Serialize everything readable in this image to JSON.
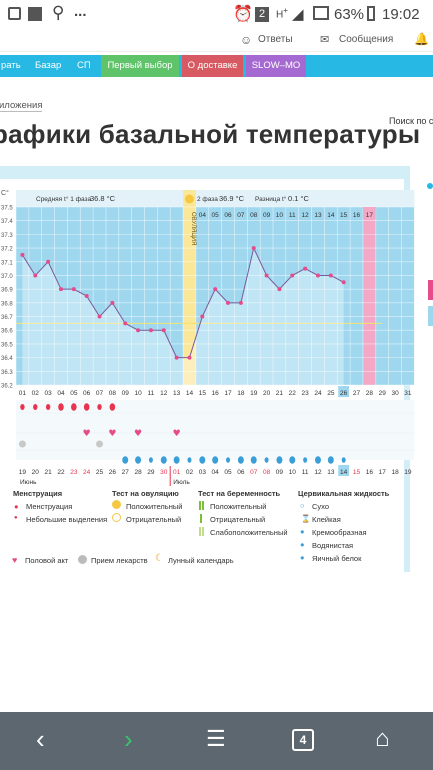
{
  "status": {
    "battery": "63%",
    "time": "19:02",
    "notif_count": "2",
    "dots": "..."
  },
  "topbar": {
    "answers": "Ответы",
    "messages": "Сообщения"
  },
  "nav": {
    "items": [
      {
        "label": "рать",
        "color": "#27b8e3"
      },
      {
        "label": "Базар",
        "color": "#27b8e3"
      },
      {
        "label": "СП",
        "color": "#27b8e3"
      },
      {
        "label": "Первый выбор",
        "color": "#5fc36a"
      },
      {
        "label": "О доставке",
        "color": "#d75a62"
      },
      {
        "label": "SLOW–MO",
        "color": "#a56ad1"
      }
    ],
    "search_placeholder": "Поиск по с"
  },
  "breadcrumb": "иложения",
  "page_title": "рафики базальной температуры",
  "chart_header": {
    "unit": "С°",
    "phase1_label": "Средняя t° 1 фаза",
    "phase1_value": "36.8 °C",
    "phase2_label": "2 фаза",
    "phase2_value": "36.9 °C",
    "diff_label": "Разница t°",
    "diff_value": "0.1 °C",
    "ovulation_label": "ОВУЛЯЦИЯ",
    "month_june": "Июнь",
    "month_july": "Июль"
  },
  "chart_data": {
    "type": "line",
    "ylim": [
      36.2,
      37.5
    ],
    "y_ticks": [
      "37.5",
      "37.4",
      "37.3",
      "37.2",
      "37.1",
      "37.0",
      "36.9",
      "36.8",
      "36.7",
      "36.6",
      "36.5",
      "36.4",
      "36.3",
      "36.2"
    ],
    "top_days": [
      "",
      "",
      "",
      "",
      "",
      "",
      "",
      "",
      "",
      "",
      "",
      "",
      "",
      "",
      "04",
      "05",
      "06",
      "07",
      "08",
      "09",
      "10",
      "11",
      "12",
      "13",
      "14",
      "15",
      "16",
      "17"
    ],
    "cycle_days": [
      "01",
      "02",
      "03",
      "04",
      "05",
      "06",
      "07",
      "08",
      "09",
      "10",
      "11",
      "12",
      "13",
      "14",
      "15",
      "16",
      "17",
      "18",
      "19",
      "20",
      "21",
      "22",
      "23",
      "24",
      "25",
      "26",
      "27",
      "28",
      "29",
      "30",
      "31"
    ],
    "calendar_days": [
      "19",
      "20",
      "21",
      "22",
      "23",
      "24",
      "25",
      "26",
      "27",
      "28",
      "29",
      "30",
      "01",
      "02",
      "03",
      "04",
      "05",
      "06",
      "07",
      "08",
      "09",
      "10",
      "11",
      "12",
      "13",
      "14",
      "15",
      "16",
      "17",
      "18",
      "19"
    ],
    "weekend_days": [
      "23",
      "24",
      "30",
      "01",
      "07",
      "08",
      "15"
    ],
    "values": [
      37.15,
      37.0,
      37.1,
      36.9,
      36.9,
      36.85,
      36.7,
      36.8,
      36.65,
      36.6,
      36.6,
      36.6,
      36.4,
      36.4,
      36.7,
      36.9,
      36.8,
      36.8,
      37.2,
      37.0,
      36.9,
      37.0,
      37.05,
      37.0,
      37.0,
      36.95
    ],
    "avg_line": 36.65,
    "ovulation_day": 14,
    "today_day": 26,
    "pink_day": 28,
    "menstruation_days": [
      1,
      2,
      3,
      4,
      5,
      6,
      7,
      8
    ],
    "sex_days": [
      6,
      8,
      10,
      13
    ],
    "medicine_days": [
      1,
      7
    ],
    "cervical_days": [
      9,
      10,
      11,
      12,
      13,
      14,
      15,
      16,
      17,
      18,
      19,
      20,
      21,
      22,
      23,
      24,
      25,
      26
    ]
  },
  "legend": {
    "menstruation_h": "Менструация",
    "menstruation": "Менструация",
    "spotting": "Небольшие выделения",
    "ovtest_h": "Тест на овуляцию",
    "positive": "Положительный",
    "negative": "Отрицательный",
    "pregtest_h": "Тест на беременность",
    "preg_positive": "Положительный",
    "preg_negative": "Отрицательный",
    "preg_weak": "Слабоположительный",
    "cervical_h": "Цервикальная жидкость",
    "dry": "Сухо",
    "sticky": "Клейкая",
    "creamy": "Кремообразная",
    "watery": "Водянистая",
    "eggwhite": "Яичный белок",
    "sex": "Половой акт",
    "medicine": "Прием лекарств",
    "lunar": "Лунный календарь"
  },
  "navbar": {
    "tabs_count": "4"
  }
}
